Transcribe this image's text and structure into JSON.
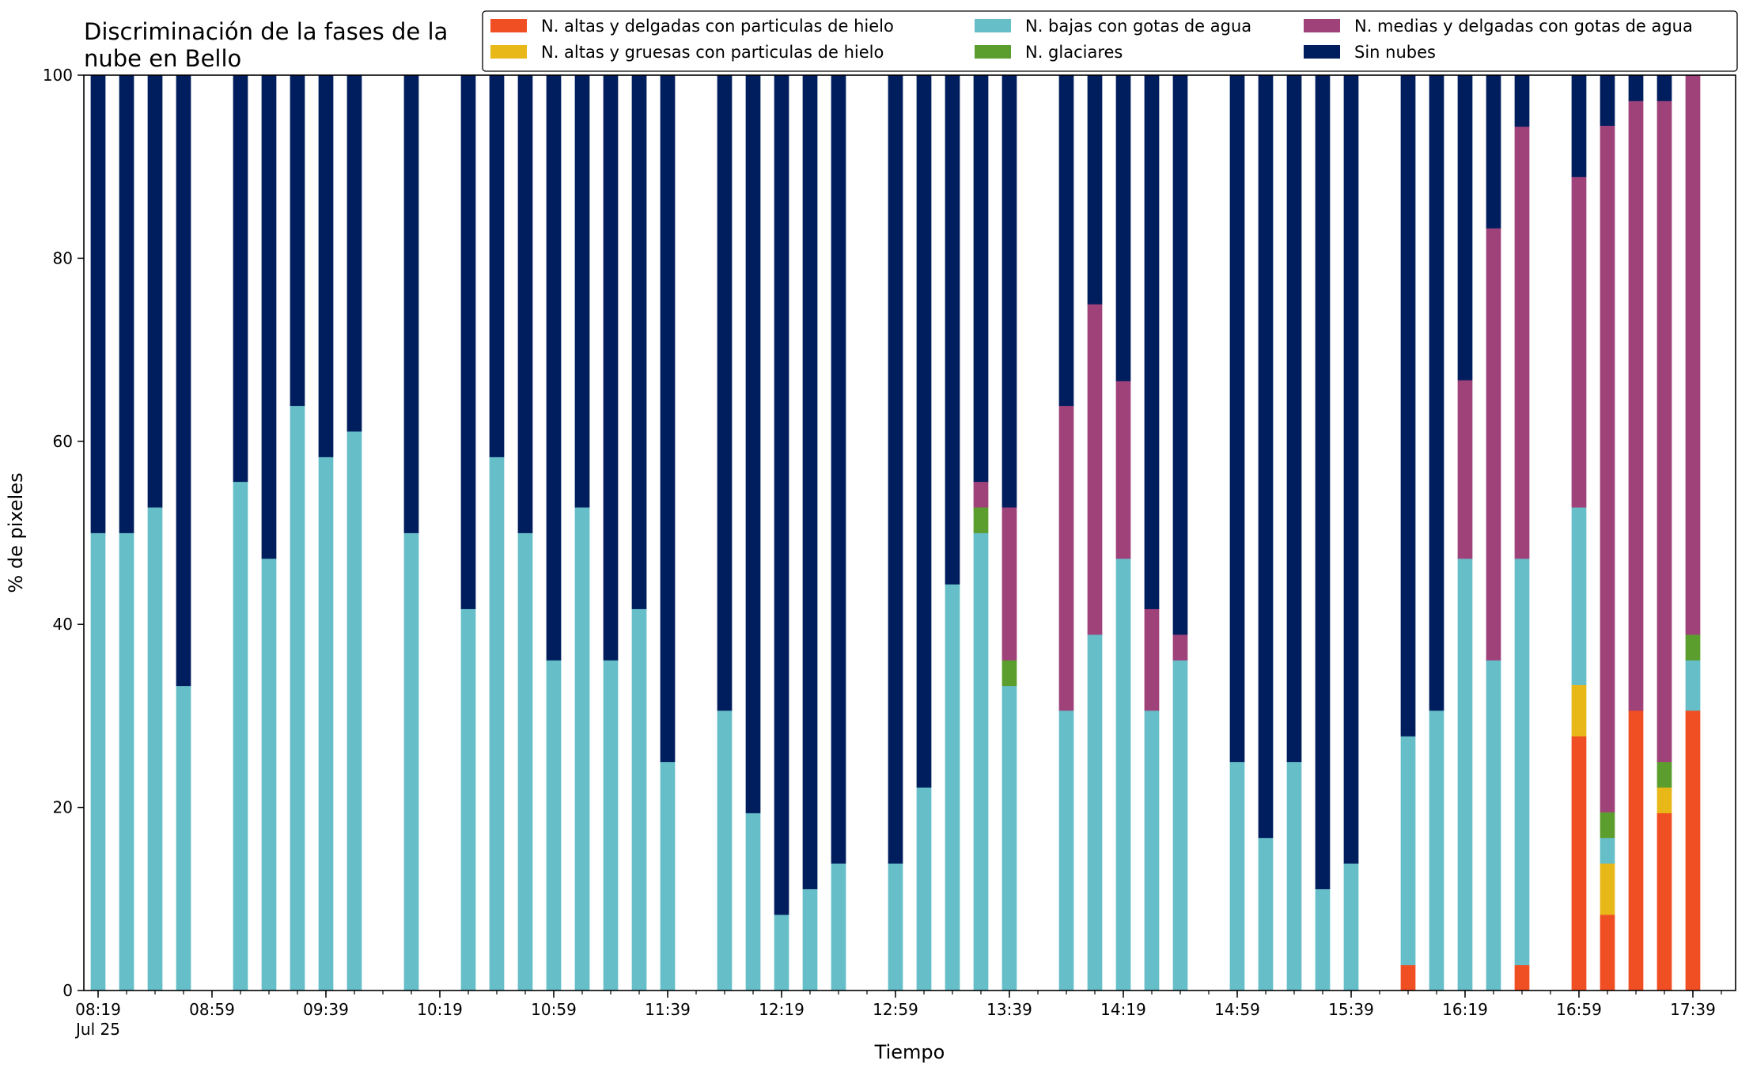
{
  "chart_data": {
    "type": "bar",
    "stacked": true,
    "title": "Discriminación de la fases de la\nnube en Bello",
    "xlabel": "Tiempo",
    "ylabel": "% de pixeles",
    "ylim": [
      0,
      100
    ],
    "yticks": [
      "0",
      "20",
      "40",
      "60",
      "80",
      "100"
    ],
    "xlim": [
      "08:14",
      "17:54"
    ],
    "time_step_minutes": 10,
    "grid": false,
    "legend_position": "top-right",
    "xtick_labels": [
      {
        "time": "08:19",
        "label": "08:19",
        "sublabel": "Jul 25"
      },
      {
        "time": "08:59",
        "label": "08:59"
      },
      {
        "time": "09:39",
        "label": "09:39"
      },
      {
        "time": "10:19",
        "label": "10:19"
      },
      {
        "time": "10:59",
        "label": "10:59"
      },
      {
        "time": "11:39",
        "label": "11:39"
      },
      {
        "time": "12:19",
        "label": "12:19"
      },
      {
        "time": "12:59",
        "label": "12:59"
      },
      {
        "time": "13:39",
        "label": "13:39"
      },
      {
        "time": "14:19",
        "label": "14:19"
      },
      {
        "time": "14:59",
        "label": "14:59"
      },
      {
        "time": "15:39",
        "label": "15:39"
      },
      {
        "time": "16:19",
        "label": "16:19"
      },
      {
        "time": "16:59",
        "label": "16:59"
      },
      {
        "time": "17:39",
        "label": "17:39"
      }
    ],
    "series_keys": [
      "altas_delgadas",
      "altas_gruesas",
      "bajas",
      "glaciares",
      "medias",
      "sin_nubes"
    ],
    "series": [
      {
        "key": "altas_delgadas",
        "name": "N. altas y delgadas con particulas de hielo",
        "color": "#f04e23"
      },
      {
        "key": "altas_gruesas",
        "name": "N. altas y gruesas con particulas de hielo",
        "color": "#e8b819"
      },
      {
        "key": "bajas",
        "name": "N. bajas con gotas de agua",
        "color": "#66bec8"
      },
      {
        "key": "glaciares",
        "name": "N. glaciares",
        "color": "#5c9e2d"
      },
      {
        "key": "medias",
        "name": "N. medias y delgadas con gotas de agua",
        "color": "#a0427a"
      },
      {
        "key": "sin_nubes",
        "name": "Sin nubes",
        "color": "#001e5e"
      }
    ],
    "legend_order": [
      "altas_delgadas",
      "altas_gruesas",
      "bajas",
      "glaciares",
      "medias",
      "sin_nubes"
    ],
    "bars": [
      {
        "time": "08:19",
        "values": [
          0,
          0,
          50,
          0,
          0,
          50
        ]
      },
      {
        "time": "08:29",
        "values": [
          0,
          0,
          50,
          0,
          0,
          50
        ]
      },
      {
        "time": "08:39",
        "values": [
          0,
          0,
          52.8,
          0,
          0,
          47.2
        ]
      },
      {
        "time": "08:49",
        "values": [
          0,
          0,
          33.3,
          0,
          0,
          66.7
        ]
      },
      {
        "time": "09:09",
        "values": [
          0,
          0,
          55.6,
          0,
          0,
          44.4
        ]
      },
      {
        "time": "09:19",
        "values": [
          0,
          0,
          47.2,
          0,
          0,
          52.8
        ]
      },
      {
        "time": "09:29",
        "values": [
          0,
          0,
          63.9,
          0,
          0,
          36.1
        ]
      },
      {
        "time": "09:39",
        "values": [
          0,
          0,
          58.3,
          0,
          0,
          41.7
        ]
      },
      {
        "time": "09:49",
        "values": [
          0,
          0,
          61.1,
          0,
          0,
          38.9
        ]
      },
      {
        "time": "10:09",
        "values": [
          0,
          0,
          50,
          0,
          0,
          50
        ]
      },
      {
        "time": "10:29",
        "values": [
          0,
          0,
          41.7,
          0,
          0,
          58.3
        ]
      },
      {
        "time": "10:39",
        "values": [
          0,
          0,
          58.3,
          0,
          0,
          41.7
        ]
      },
      {
        "time": "10:49",
        "values": [
          0,
          0,
          50,
          0,
          0,
          50
        ]
      },
      {
        "time": "10:59",
        "values": [
          0,
          0,
          36.1,
          0,
          0,
          63.9
        ]
      },
      {
        "time": "11:09",
        "values": [
          0,
          0,
          52.8,
          0,
          0,
          47.2
        ]
      },
      {
        "time": "11:19",
        "values": [
          0,
          0,
          36.1,
          0,
          0,
          63.9
        ]
      },
      {
        "time": "11:29",
        "values": [
          0,
          0,
          41.7,
          0,
          0,
          58.3
        ]
      },
      {
        "time": "11:39",
        "values": [
          0,
          0,
          25,
          0,
          0,
          75
        ]
      },
      {
        "time": "11:59",
        "values": [
          0,
          0,
          30.6,
          0,
          0,
          69.4
        ]
      },
      {
        "time": "12:09",
        "values": [
          0,
          0,
          19.4,
          0,
          0,
          80.6
        ]
      },
      {
        "time": "12:19",
        "values": [
          0,
          0,
          8.3,
          0,
          0,
          91.7
        ]
      },
      {
        "time": "12:29",
        "values": [
          0,
          0,
          11.1,
          0,
          0,
          88.9
        ]
      },
      {
        "time": "12:39",
        "values": [
          0,
          0,
          13.9,
          0,
          0,
          86.1
        ]
      },
      {
        "time": "12:59",
        "values": [
          0,
          0,
          13.9,
          0,
          0,
          86.1
        ]
      },
      {
        "time": "13:09",
        "values": [
          0,
          0,
          22.2,
          0,
          0,
          77.8
        ]
      },
      {
        "time": "13:19",
        "values": [
          0,
          0,
          44.4,
          0,
          0,
          55.6
        ]
      },
      {
        "time": "13:29",
        "values": [
          0,
          0,
          50,
          2.8,
          2.8,
          44.4
        ]
      },
      {
        "time": "13:39",
        "values": [
          0,
          0,
          33.3,
          2.8,
          16.7,
          47.2
        ]
      },
      {
        "time": "13:59",
        "values": [
          0,
          0,
          30.6,
          0,
          33.3,
          36.1
        ]
      },
      {
        "time": "14:09",
        "values": [
          0,
          0,
          38.9,
          0,
          36.1,
          25
        ]
      },
      {
        "time": "14:19",
        "values": [
          0,
          0,
          47.2,
          0,
          19.4,
          33.4
        ]
      },
      {
        "time": "14:29",
        "values": [
          0,
          0,
          30.6,
          0,
          11.1,
          58.3
        ]
      },
      {
        "time": "14:39",
        "values": [
          0,
          0,
          36.1,
          0,
          2.8,
          61.1
        ]
      },
      {
        "time": "14:59",
        "values": [
          0,
          0,
          25,
          0,
          0,
          75
        ]
      },
      {
        "time": "15:09",
        "values": [
          0,
          0,
          16.7,
          0,
          0,
          83.3
        ]
      },
      {
        "time": "15:19",
        "values": [
          0,
          0,
          25,
          0,
          0,
          75
        ]
      },
      {
        "time": "15:29",
        "values": [
          0,
          0,
          11.1,
          0,
          0,
          88.9
        ]
      },
      {
        "time": "15:39",
        "values": [
          0,
          0,
          13.9,
          0,
          0,
          86.1
        ]
      },
      {
        "time": "15:59",
        "values": [
          2.8,
          0,
          25,
          0,
          0,
          72.2
        ]
      },
      {
        "time": "16:09",
        "values": [
          0,
          0,
          30.6,
          0,
          0,
          69.4
        ]
      },
      {
        "time": "16:19",
        "values": [
          0,
          0,
          47.2,
          0,
          19.5,
          33.3
        ]
      },
      {
        "time": "16:29",
        "values": [
          0,
          0,
          36.1,
          0,
          47.2,
          16.7
        ]
      },
      {
        "time": "16:39",
        "values": [
          2.8,
          0,
          44.4,
          0,
          47.2,
          5.6
        ]
      },
      {
        "time": "16:59",
        "values": [
          27.8,
          5.6,
          19.4,
          0,
          36.1,
          11.1
        ]
      },
      {
        "time": "17:09",
        "values": [
          8.3,
          5.6,
          2.8,
          2.8,
          75,
          5.5
        ]
      },
      {
        "time": "17:19",
        "values": [
          30.6,
          0,
          0,
          0,
          66.6,
          2.8
        ]
      },
      {
        "time": "17:29",
        "values": [
          19.4,
          2.8,
          0,
          2.8,
          72.2,
          2.8
        ]
      },
      {
        "time": "17:39",
        "values": [
          30.6,
          0,
          5.5,
          2.8,
          61.1,
          0
        ]
      }
    ]
  }
}
